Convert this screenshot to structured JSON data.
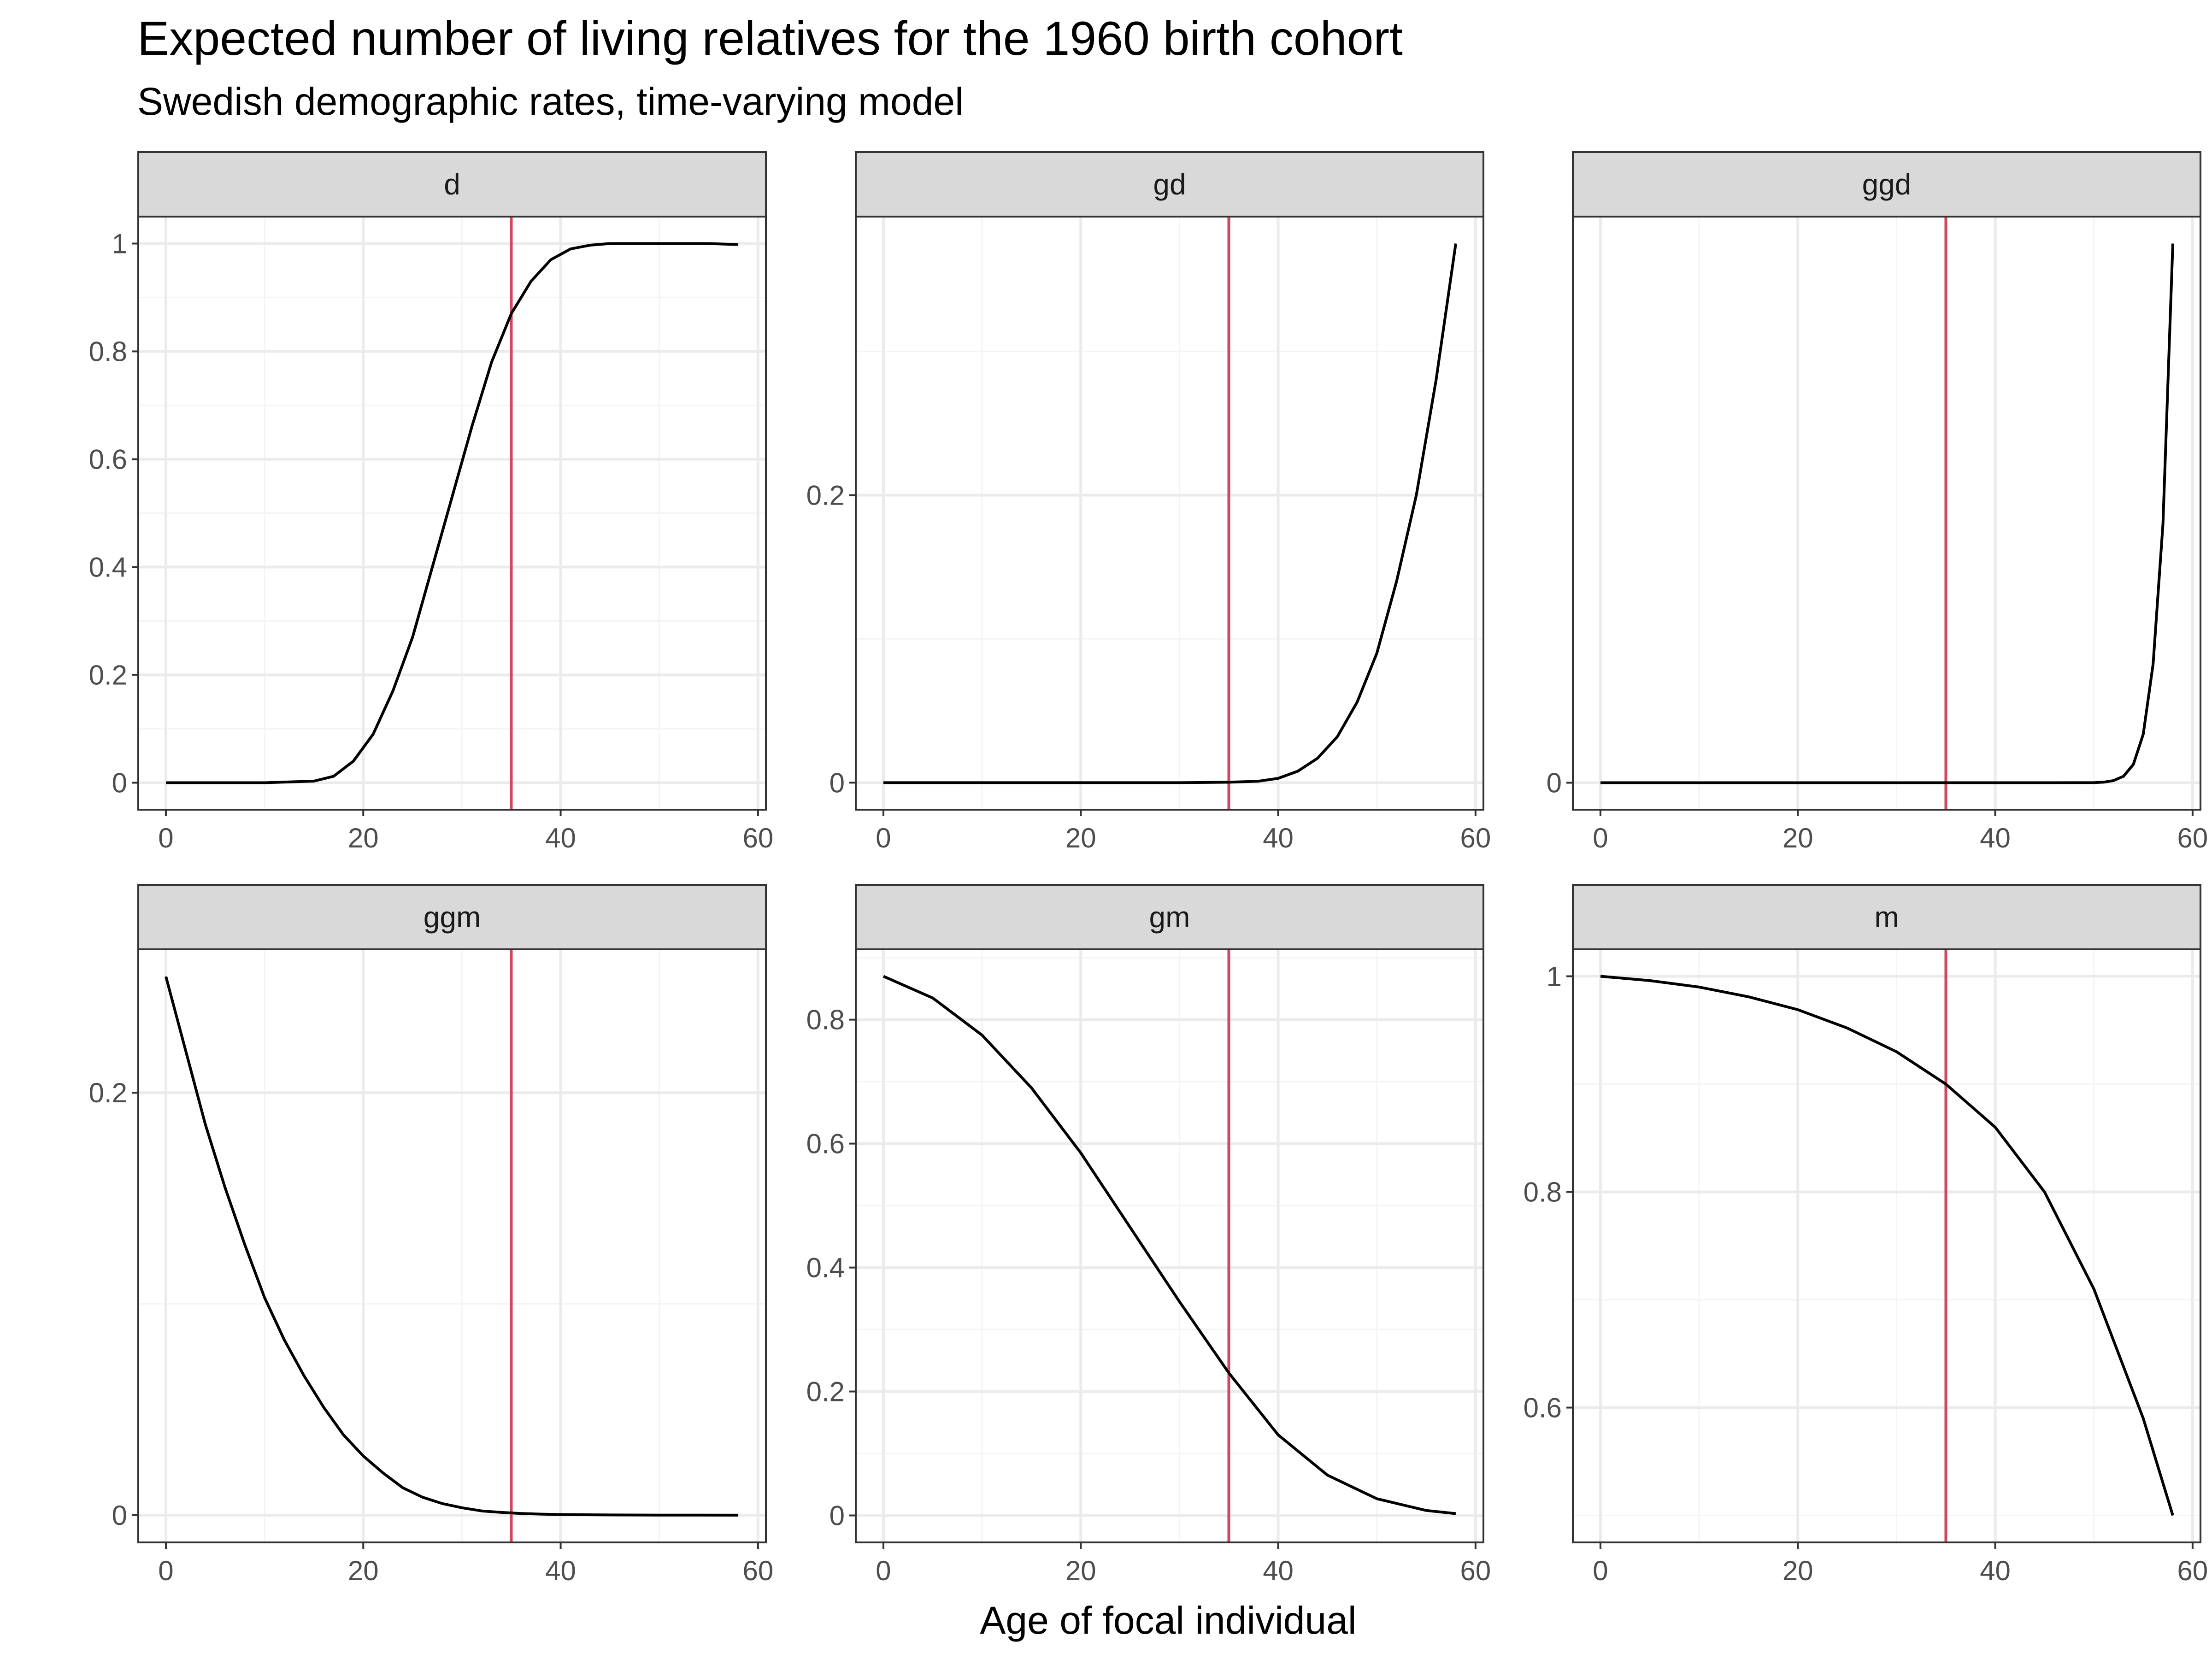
{
  "title": "Expected number of living relatives for the 1960 birth cohort",
  "subtitle": "Swedish demographic rates, time-varying model",
  "xlabel": "Age of focal individual",
  "colors": {
    "curve": "#000000",
    "vline": "#d2475f",
    "strip": "#d9d9d9",
    "grid_major": "#ebebeb",
    "grid_minor": "#f4f4f4"
  },
  "chart_data": [
    {
      "type": "line",
      "panel": "d",
      "x": [
        0,
        5,
        10,
        15,
        17,
        19,
        21,
        23,
        25,
        27,
        29,
        31,
        33,
        35,
        37,
        39,
        41,
        43,
        45,
        50,
        55,
        58
      ],
      "y": [
        0,
        0,
        0,
        0.003,
        0.012,
        0.04,
        0.09,
        0.17,
        0.27,
        0.4,
        0.53,
        0.66,
        0.78,
        0.87,
        0.93,
        0.97,
        0.99,
        0.997,
        1.0,
        1.0,
        1.0,
        0.998
      ],
      "xlim": [
        -2.8,
        60.8
      ],
      "ylim": [
        -0.05,
        1.05
      ],
      "xticks": [
        0,
        20,
        40,
        60
      ],
      "yticks": [
        0,
        0.2,
        0.4,
        0.6,
        0.8,
        1
      ],
      "ytick_labels": [
        "0",
        "0.2",
        "0.4",
        "0.6",
        "0.8",
        "1"
      ],
      "vline": 35
    },
    {
      "type": "line",
      "panel": "gd",
      "x": [
        0,
        10,
        20,
        30,
        35,
        38,
        40,
        42,
        44,
        46,
        48,
        50,
        52,
        54,
        56,
        58
      ],
      "y": [
        0,
        0,
        0,
        0,
        0.0003,
        0.001,
        0.003,
        0.008,
        0.017,
        0.032,
        0.056,
        0.09,
        0.14,
        0.2,
        0.28,
        0.375
      ],
      "xlim": [
        -2.8,
        60.8
      ],
      "ylim": [
        -0.0188,
        0.3938
      ],
      "xticks": [
        0,
        20,
        40,
        60
      ],
      "yticks": [
        0,
        0.2
      ],
      "ytick_labels": [
        "0",
        "0.2"
      ],
      "vline": 35
    },
    {
      "type": "line",
      "panel": "ggd",
      "x": [
        0,
        10,
        20,
        30,
        40,
        45,
        50,
        51,
        52,
        53,
        54,
        55,
        56,
        57,
        58
      ],
      "y": [
        0,
        0,
        0,
        0,
        0,
        0,
        1e-05,
        5e-05,
        0.0002,
        0.0006,
        0.0017,
        0.0045,
        0.011,
        0.024,
        0.05
      ],
      "xlim": [
        -2.8,
        60.8
      ],
      "ylim": [
        -0.0025,
        0.0525
      ],
      "xticks": [
        0,
        20,
        40,
        60
      ],
      "yticks": [
        0
      ],
      "ytick_labels": [
        "0"
      ],
      "vline": 35
    },
    {
      "type": "line",
      "panel": "ggm",
      "x": [
        0,
        2,
        4,
        6,
        8,
        10,
        12,
        14,
        16,
        18,
        20,
        22,
        24,
        26,
        28,
        30,
        32,
        34,
        36,
        38,
        40,
        45,
        50,
        58
      ],
      "y": [
        0.255,
        0.22,
        0.185,
        0.155,
        0.128,
        0.103,
        0.083,
        0.066,
        0.051,
        0.038,
        0.028,
        0.02,
        0.013,
        0.0085,
        0.0055,
        0.0035,
        0.002,
        0.0013,
        0.0008,
        0.0005,
        0.0003,
        0.0001,
        3e-05,
        0
      ],
      "xlim": [
        -2.8,
        60.8
      ],
      "ylim": [
        -0.0129,
        0.2679
      ],
      "xticks": [
        0,
        20,
        40,
        60
      ],
      "yticks": [
        0,
        0.2
      ],
      "ytick_labels": [
        "0",
        "0.2"
      ],
      "vline": 35
    },
    {
      "type": "line",
      "panel": "gm",
      "x": [
        0,
        5,
        10,
        15,
        20,
        25,
        30,
        35,
        40,
        45,
        50,
        55,
        58
      ],
      "y": [
        0.87,
        0.835,
        0.775,
        0.69,
        0.585,
        0.465,
        0.345,
        0.23,
        0.13,
        0.065,
        0.027,
        0.008,
        0.003
      ],
      "xlim": [
        -2.8,
        60.8
      ],
      "ylim": [
        -0.0435,
        0.9135
      ],
      "xticks": [
        0,
        20,
        40,
        60
      ],
      "yticks": [
        0,
        0.2,
        0.4,
        0.6,
        0.8
      ],
      "ytick_labels": [
        "0",
        "0.2",
        "0.4",
        "0.6",
        "0.8"
      ],
      "vline": 35
    },
    {
      "type": "line",
      "panel": "m",
      "x": [
        0,
        5,
        10,
        15,
        20,
        25,
        30,
        35,
        40,
        45,
        50,
        55,
        58
      ],
      "y": [
        1.0,
        0.996,
        0.99,
        0.981,
        0.969,
        0.952,
        0.93,
        0.9,
        0.86,
        0.8,
        0.71,
        0.59,
        0.5
      ],
      "xlim": [
        -2.8,
        60.8
      ],
      "ylim": [
        0.475,
        1.025
      ],
      "xticks": [
        0,
        20,
        40,
        60
      ],
      "yticks": [
        0.6,
        0.8,
        1
      ],
      "ytick_labels": [
        "0.6",
        "0.8",
        "1"
      ],
      "vline": 35
    }
  ]
}
